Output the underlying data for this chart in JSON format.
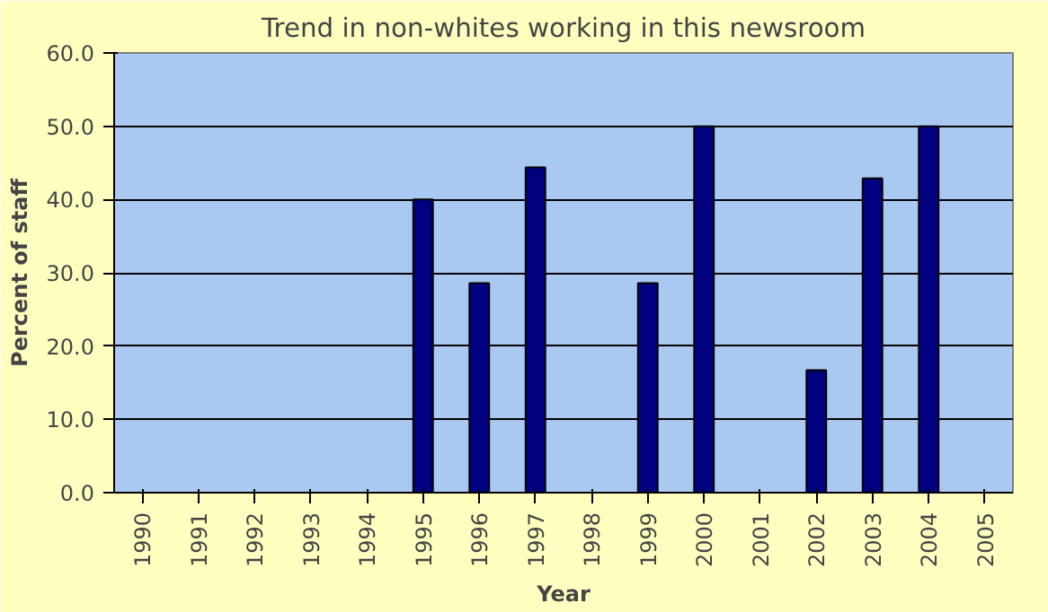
{
  "chart_data": {
    "type": "bar",
    "title": "Trend in non-whites working in this newsroom",
    "xlabel": "Year",
    "ylabel": "Percent of staff",
    "categories": [
      "1990",
      "1991",
      "1992",
      "1993",
      "1994",
      "1995",
      "1996",
      "1997",
      "1998",
      "1999",
      "2000",
      "2001",
      "2002",
      "2003",
      "2004",
      "2005"
    ],
    "values": [
      null,
      null,
      null,
      null,
      null,
      40,
      28.6,
      44.4,
      null,
      28.6,
      50,
      null,
      16.7,
      42.9,
      50,
      null
    ],
    "color": "#000080",
    "ylim": [
      0,
      60
    ],
    "yticks": [
      {
        "value": 0,
        "label": "0.0"
      },
      {
        "value": 10,
        "label": "10.0"
      },
      {
        "value": 20,
        "label": "20.0"
      },
      {
        "value": 30,
        "label": "30.0"
      },
      {
        "value": 40,
        "label": "40.0"
      },
      {
        "value": 50,
        "label": "50.0"
      },
      {
        "value": 60,
        "label": "60.0"
      }
    ],
    "grid": "y"
  }
}
